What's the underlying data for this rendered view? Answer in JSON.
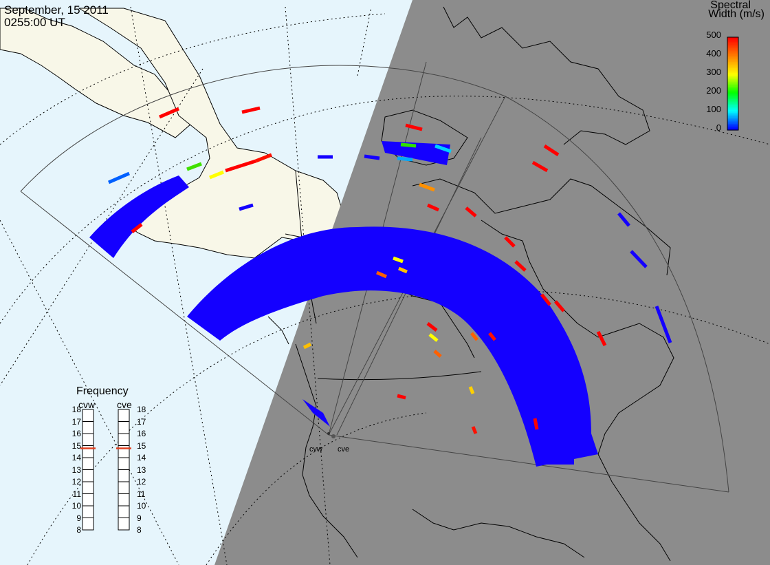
{
  "header": {
    "date": "September, 15 2011",
    "time": "0255:00 UT"
  },
  "colorbar": {
    "title_line1": "Spectral",
    "title_line2": "Width (m/s)",
    "ticks": [
      "500",
      "400",
      "300",
      "200",
      "100",
      "0"
    ],
    "colors": [
      "#ff0000",
      "#ff8000",
      "#ffff00",
      "#00ff00",
      "#00ffff",
      "#0000ff"
    ]
  },
  "radars": {
    "cvw_label": "cvw",
    "cve_label": "cve"
  },
  "frequency": {
    "title": "Frequency",
    "left_label": "cvw",
    "right_label": "cve",
    "levels": [
      "18",
      "17",
      "16",
      "15",
      "14",
      "13",
      "12",
      "11",
      "10",
      "9",
      "8"
    ],
    "cvw_value": 15,
    "cve_value": 15
  },
  "map": {
    "ocean_color": "#e6f5fc",
    "land_color": "#f8f7e8",
    "night_color": "#8c8c8c",
    "scatter_color": "#1400ff"
  }
}
